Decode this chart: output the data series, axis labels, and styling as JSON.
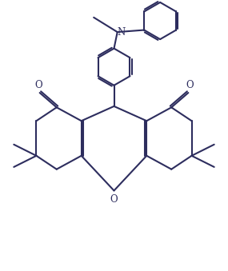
{
  "background": "#ffffff",
  "line_color": "#2d2d5e",
  "line_width": 1.5,
  "fig_width": 2.85,
  "fig_height": 3.39,
  "dpi": 100,
  "xlim": [
    0,
    10
  ],
  "ylim": [
    0,
    12
  ]
}
